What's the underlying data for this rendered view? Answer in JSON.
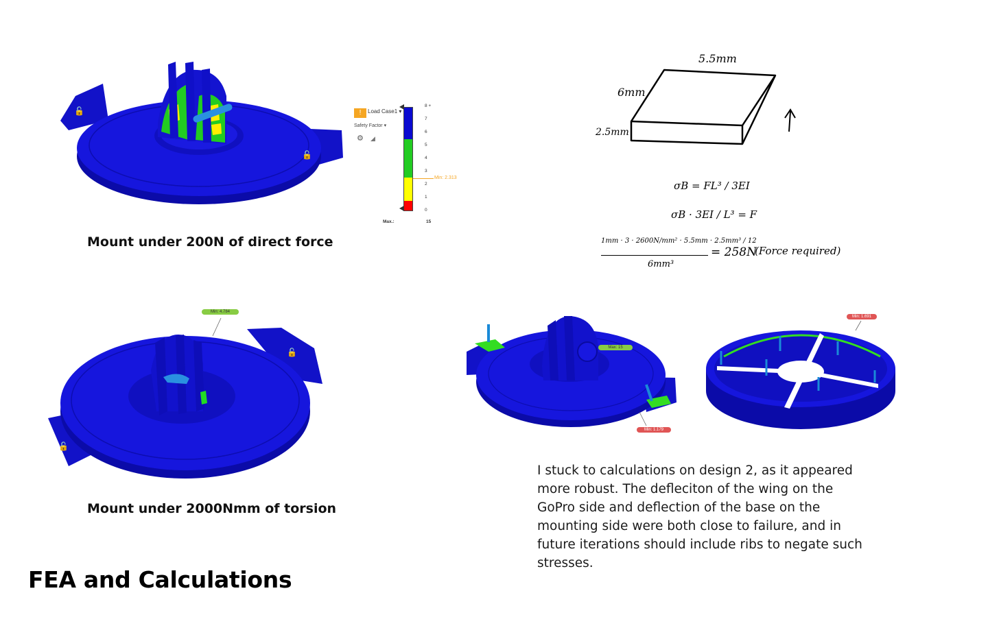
{
  "captions": {
    "force": "Mount under 200N of direct force",
    "torsion": "Mount under 2000Nmm of torsion"
  },
  "page_title": "FEA and Calculations",
  "paragraph": {
    "lines": [
      "I stuck to calculations on design 2, as it appeared",
      "more robust. The defleciton of the wing on the",
      "GoPro side and deflection of the base on the",
      "mounting side were both close to failure, and in",
      "future iterations should include ribs to negate such",
      "stresses."
    ]
  },
  "legend": {
    "load_case": "Load Case1",
    "result_type": "Safety Factor",
    "ticks": [
      "8 +",
      "7",
      "6",
      "5",
      "4",
      "3",
      "2",
      "1",
      "0"
    ],
    "min_label": "Min: 2.313",
    "max_label": "Max.:",
    "max_value": "15",
    "colors": {
      "blue": "#0a0ad0",
      "green": "#22cc22",
      "yellow": "#ffff00",
      "red": "#ff0000",
      "warn": "#f5a623"
    }
  },
  "annotations": {
    "torsion_min": "Min: 4.784",
    "design2_max": "Max: 15",
    "design2_min": "Min: 1.179",
    "design2_base_min": "Min: 1.691"
  },
  "sketch": {
    "dim_length": "5.5mm",
    "dim_width": "6mm",
    "dim_height": "2.5mm",
    "eq1": "σB = FL³ / 3EI",
    "eq2": "σB · 3EI / L³ = F",
    "eq3_numerator": "1mm · 3 · 2600N/mm² · 5.5mm · 2.5mm³ / 12",
    "eq3_denominator": "6mm³",
    "result": "= 258N",
    "result_note": "(Force required)"
  },
  "model_colors": {
    "body": "#1616dd",
    "stress_high": "#22dd22",
    "stress_mid": "#ffee00",
    "arrow": "#1a8ad8"
  }
}
